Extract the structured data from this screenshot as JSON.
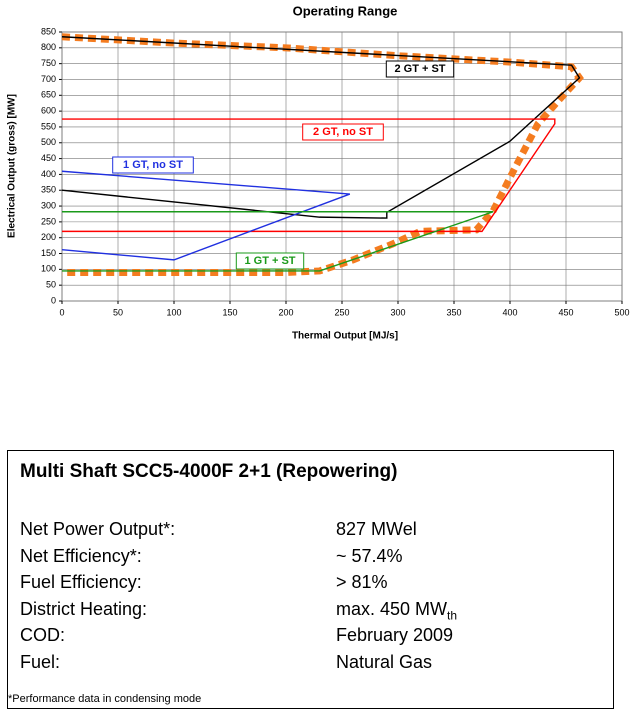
{
  "chart_data": {
    "type": "line",
    "title": "Operating Range",
    "x_label": "Thermal Output [MJ/s]",
    "y_label": "Electrical Output (gross) [MW]",
    "xlim": [
      0,
      500
    ],
    "ylim": [
      0,
      850
    ],
    "xticks": [
      0,
      50,
      100,
      150,
      200,
      250,
      300,
      350,
      400,
      450,
      500
    ],
    "yticks": [
      0,
      50,
      100,
      150,
      200,
      250,
      300,
      350,
      400,
      450,
      500,
      550,
      600,
      650,
      700,
      750,
      800,
      850
    ],
    "grid": true,
    "series": [
      {
        "color": "#f47c20",
        "dashed": true,
        "x": [
          0,
          100,
          200,
          300,
          400,
          455,
          462,
          445,
          425,
          400,
          385,
          370,
          320,
          295,
          260,
          230,
          200,
          100,
          0
        ],
        "y": [
          835,
          815,
          800,
          775,
          755,
          740,
          705,
          640,
          560,
          390,
          285,
          225,
          220,
          180,
          130,
          95,
          90,
          90,
          90
        ]
      },
      {
        "name": "2 GT + ST",
        "color": "#000000",
        "x": [
          0,
          230,
          290,
          290,
          400,
          462,
          455,
          0
        ],
        "y": [
          350,
          265,
          262,
          280,
          505,
          705,
          745,
          835
        ]
      },
      {
        "name": "2 GT, no ST",
        "color": "#ff0000",
        "x": [
          0,
          440,
          440,
          375,
          0
        ],
        "y": [
          575,
          575,
          560,
          220,
          220
        ]
      },
      {
        "name": "1 GT, no ST",
        "color": "#2030e0",
        "x": [
          0,
          257,
          100,
          0
        ],
        "y": [
          410,
          338,
          130,
          162
        ]
      },
      {
        "name": "1 GT + ST",
        "color": "#1a9a1a",
        "x": [
          0,
          385,
          230,
          0
        ],
        "y": [
          282,
          282,
          95,
          95
        ]
      }
    ]
  },
  "info": {
    "title": "Multi Shaft SCC5-4000F 2+1 (Repowering)",
    "rows": [
      [
        "Net Power Output*:",
        "827 MWel"
      ],
      [
        "Net Efficiency*:",
        "~ 57.4%"
      ],
      [
        "Fuel Efficiency:",
        "> 81%"
      ],
      [
        "District Heating:",
        "max. 450 MW"
      ],
      [
        "COD:",
        "February 2009"
      ],
      [
        "Fuel:",
        "Natural Gas"
      ]
    ],
    "heating_sub": "th",
    "footnote": "*Performance data in condensing mode"
  }
}
